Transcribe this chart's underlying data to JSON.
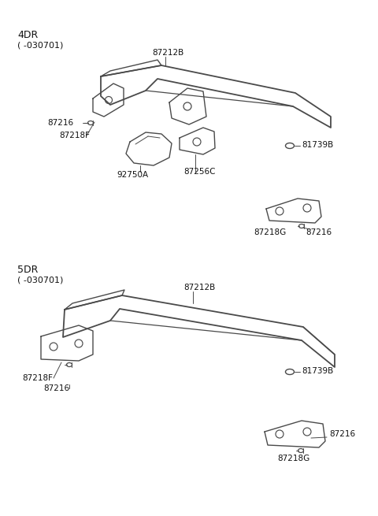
{
  "bg_color": "#ffffff",
  "line_color": "#4a4a4a",
  "section1_label": "4DR",
  "section1_sub": "( -030701)",
  "section2_label": "5DR",
  "section2_sub": "( -030701)",
  "font_size_label": 7.5,
  "font_size_section": 9.0
}
